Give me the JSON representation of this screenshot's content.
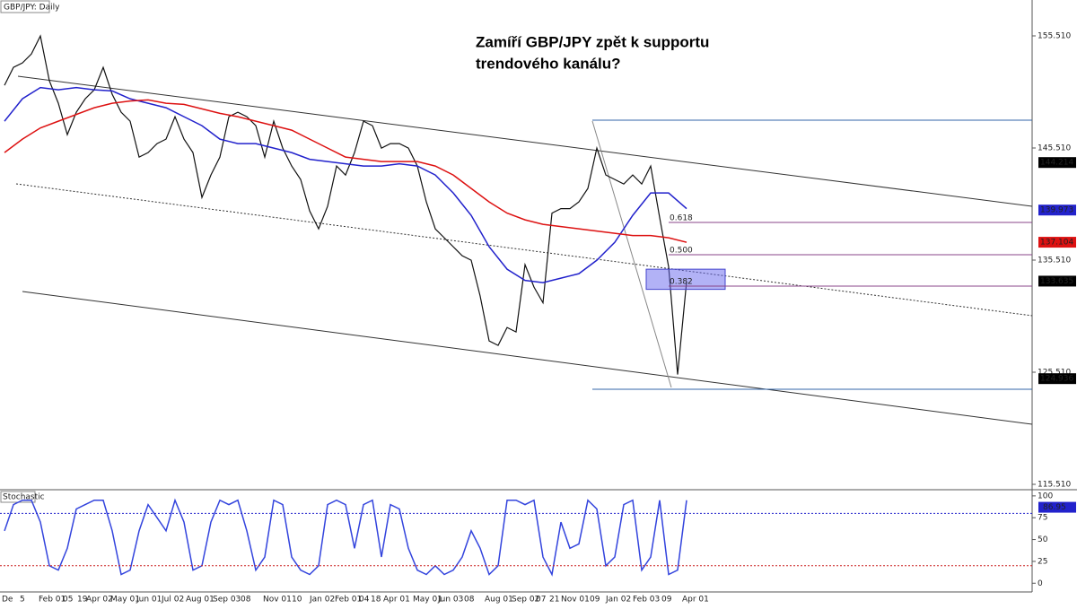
{
  "header": {
    "title": "GBP/JPY: Daily",
    "annotation_lines": [
      "Zamíří GBP/JPY zpět k supportu",
      "trendového kanálu?"
    ]
  },
  "chart_data": [
    {
      "type": "line",
      "name": "price",
      "ylim": [
        115.11,
        158.71
      ],
      "yticks": [
        {
          "value": 155.51,
          "label": "155.510"
        },
        {
          "value": 145.51,
          "label": "145.510"
        },
        {
          "value": 135.51,
          "label": "135.510"
        },
        {
          "value": 125.51,
          "label": "125.510"
        },
        {
          "value": 115.51,
          "label": "115.510"
        }
      ],
      "series": [
        {
          "color": "#111111",
          "values": [
            151.1,
            152.7,
            153.1,
            153.9,
            155.5,
            151.5,
            149.5,
            146.7,
            148.7,
            149.9,
            150.7,
            152.7,
            150.3,
            148.7,
            147.9,
            144.7,
            145.1,
            145.9,
            146.3,
            148.3,
            146.3,
            145.1,
            141.1,
            143.1,
            144.7,
            148.3,
            148.7,
            148.3,
            147.5,
            144.7,
            147.9,
            145.5,
            143.9,
            142.7,
            139.9,
            138.3,
            140.3,
            143.9,
            143.1,
            145.1,
            147.9,
            147.5,
            145.5,
            145.9,
            145.9,
            145.5,
            143.9,
            140.7,
            138.3,
            137.5,
            136.7,
            135.9,
            135.5,
            132.3,
            128.3,
            127.9,
            129.5,
            129.1,
            135.1,
            133.1,
            131.7,
            139.7,
            140.1,
            140.1,
            140.7,
            141.9,
            145.5,
            143.1,
            142.7,
            142.3,
            143.1,
            142.3,
            143.9,
            139.3,
            134.9,
            125.3,
            133.6
          ]
        },
        {
          "color": "#2222cc",
          "values": [
            147.9,
            149.9,
            150.9,
            150.7,
            150.9,
            150.7,
            150.6,
            149.9,
            149.5,
            149.1,
            148.3,
            147.5,
            146.3,
            145.9,
            145.9,
            145.5,
            145.1,
            144.5,
            144.3,
            144.1,
            143.9,
            143.9,
            144.1,
            143.9,
            143.1,
            141.5,
            139.5,
            136.7,
            134.7,
            133.7,
            133.5,
            133.9,
            134.3,
            135.5,
            137.1,
            139.5,
            141.5,
            141.5,
            140.1
          ]
        },
        {
          "color": "#dd1111",
          "values": [
            145.1,
            146.3,
            147.3,
            147.9,
            148.5,
            149.1,
            149.5,
            149.7,
            149.8,
            149.5,
            149.4,
            149.0,
            148.6,
            148.3,
            147.9,
            147.5,
            147.1,
            146.3,
            145.5,
            144.7,
            144.5,
            144.3,
            144.3,
            144.3,
            143.9,
            143.1,
            141.9,
            140.7,
            139.7,
            139.1,
            138.7,
            138.5,
            138.3,
            138.1,
            137.9,
            137.7,
            137.7,
            137.5,
            137.1
          ]
        }
      ],
      "price_labels": [
        {
          "value": 144.214,
          "color": "#000000"
        },
        {
          "value": 139.973,
          "color": "#2222cc"
        },
        {
          "value": 137.104,
          "color": "#dd1111"
        },
        {
          "value": 133.635,
          "color": "#000000"
        },
        {
          "value": 124.936,
          "color": "#000000"
        }
      ],
      "fib_levels": [
        {
          "label": "0.618",
          "value": 138.87
        },
        {
          "label": "0.500",
          "value": 135.99
        },
        {
          "label": "0.382",
          "value": 133.19
        }
      ],
      "range_lines": [
        147.99,
        123.99
      ],
      "zone": [
        132.9,
        134.7
      ],
      "x_labels": [
        "De",
        "5",
        "Feb 01",
        "05",
        "19",
        "Apr 02",
        "May 01",
        "Jun 01",
        "Jul 02",
        "Aug 01",
        "Sep 03",
        "08",
        "Nov 01",
        "10",
        "Jan 02",
        "Feb 01",
        "04",
        "18",
        "Apr 01",
        "May 01",
        "Jun 03",
        "08",
        "Aug 01",
        "Sep 02",
        "07",
        "21",
        "Nov 01",
        "09",
        "Jan 02",
        "Feb 03",
        "09",
        "Apr 01"
      ]
    },
    {
      "type": "line",
      "name": "Stochastic",
      "ylim": [
        -10,
        105
      ],
      "yticks": [
        100,
        75,
        50,
        25,
        0
      ],
      "levels": [
        80,
        20
      ],
      "series": [
        {
          "color": "#3344dd",
          "values": [
            60,
            90,
            95,
            95,
            70,
            20,
            15,
            40,
            85,
            90,
            95,
            95,
            60,
            10,
            15,
            60,
            90,
            75,
            60,
            95,
            70,
            15,
            20,
            70,
            95,
            90,
            95,
            60,
            15,
            30,
            95,
            90,
            30,
            15,
            10,
            20,
            90,
            95,
            90,
            40,
            90,
            95,
            30,
            90,
            85,
            40,
            15,
            10,
            20,
            10,
            15,
            30,
            60,
            40,
            10,
            20,
            95,
            95,
            90,
            95,
            30,
            10,
            70,
            40,
            45,
            95,
            85,
            20,
            30,
            90,
            95,
            15,
            30,
            95,
            10,
            15,
            95
          ]
        }
      ],
      "last_value": 86.95
    }
  ]
}
